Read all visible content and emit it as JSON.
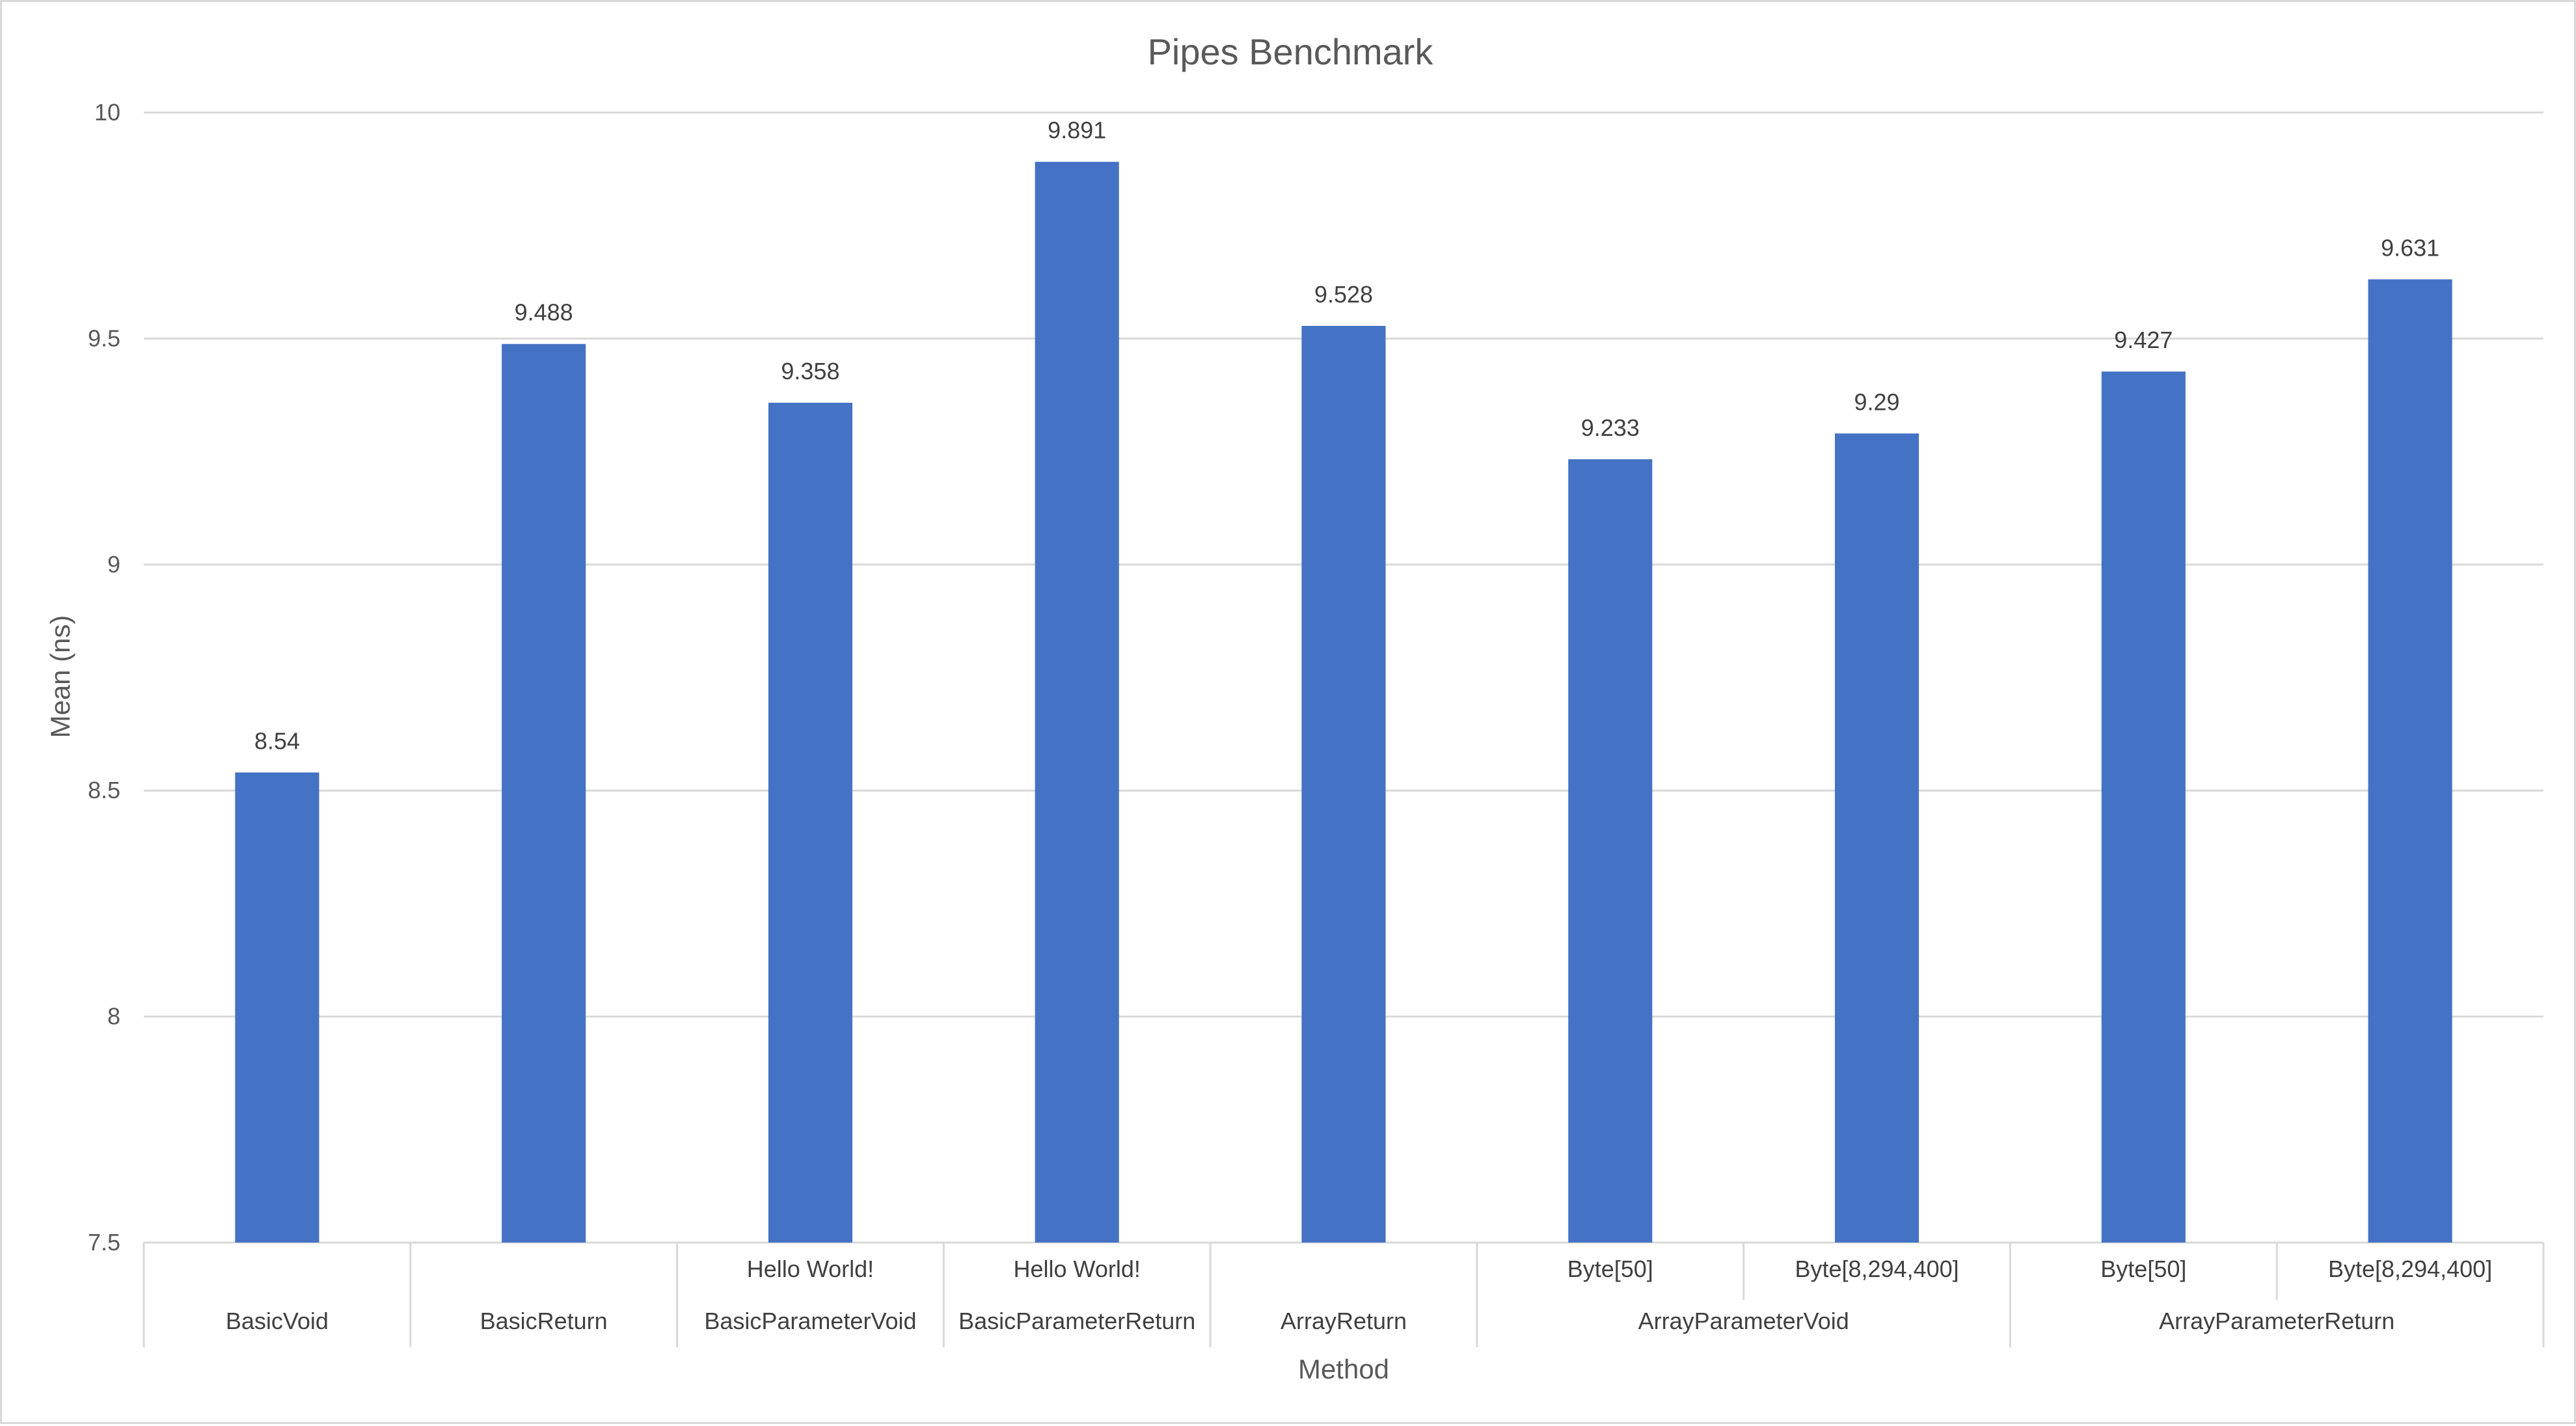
{
  "chart_data": {
    "type": "bar",
    "title": "Pipes Benchmark",
    "xlabel": "Method",
    "ylabel": "Mean (ns)",
    "ylim": [
      7.5,
      10
    ],
    "yticks": [
      "7.5",
      "8",
      "8.5",
      "9",
      "9.5",
      "10"
    ],
    "grid": true,
    "legend": "none",
    "bar_color": "#4472C4",
    "categories": [
      {
        "sub": "",
        "group": "BasicVoid"
      },
      {
        "sub": "",
        "group": "BasicReturn"
      },
      {
        "sub": "Hello World!",
        "group": "BasicParameterVoid"
      },
      {
        "sub": "Hello World!",
        "group": "BasicParameterReturn"
      },
      {
        "sub": "",
        "group": "ArrayReturn"
      },
      {
        "sub": "Byte[50]",
        "group": "ArrayParameterVoid"
      },
      {
        "sub": "Byte[8,294,400]",
        "group": "ArrayParameterVoid"
      },
      {
        "sub": "Byte[50]",
        "group": "ArrayParameterReturn"
      },
      {
        "sub": "Byte[8,294,400]",
        "group": "ArrayParameterReturn"
      }
    ],
    "groups": [
      {
        "label": "BasicVoid",
        "count": 1
      },
      {
        "label": "BasicReturn",
        "count": 1
      },
      {
        "label": "BasicParameterVoid",
        "count": 1
      },
      {
        "label": "BasicParameterReturn",
        "count": 1
      },
      {
        "label": "ArrayReturn",
        "count": 1
      },
      {
        "label": "ArrayParameterVoid",
        "count": 2
      },
      {
        "label": "ArrayParameterReturn",
        "count": 2
      }
    ],
    "values": [
      8.54,
      9.488,
      9.358,
      9.891,
      9.528,
      9.233,
      9.29,
      9.427,
      9.631
    ],
    "data_labels": [
      "8.54",
      "9.488",
      "9.358",
      "9.891",
      "9.528",
      "9.233",
      "9.29",
      "9.427",
      "9.631"
    ]
  }
}
